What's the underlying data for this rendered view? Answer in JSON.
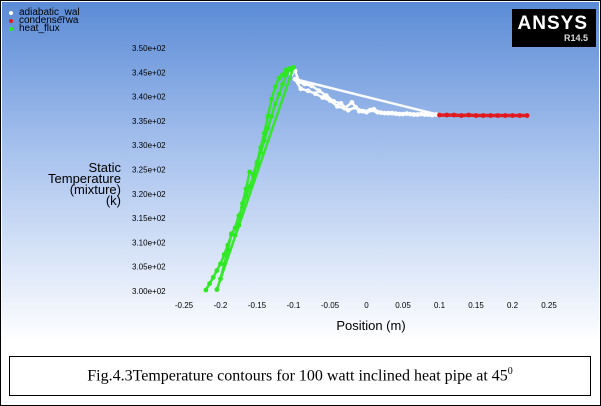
{
  "legend": [
    {
      "label": "adiabatic_wal",
      "color": "#ffffff"
    },
    {
      "label": "condenserwa",
      "color": "#e0191e"
    },
    {
      "label": "heat_flux",
      "color": "#2ee822"
    }
  ],
  "logo": {
    "main": "ANSYS",
    "sub": "R14.5"
  },
  "caption": {
    "text": "Fig.4.3Temperature contours for 100 watt inclined heat pipe at  45",
    "superscript": "0"
  },
  "colors": {
    "bg_top": "#5b8bd6",
    "bg_bottom": "#ffffff",
    "adiabatic": "#ffffff",
    "condenser": "#e0191e",
    "heat_flux": "#2ee822"
  },
  "chart_data": {
    "type": "scatter",
    "xlabel": "Position (m)",
    "ylabel_lines": [
      "Static",
      "Temperature",
      "(mixture)",
      "(k)"
    ],
    "xlim": [
      -0.25,
      0.25
    ],
    "ylim": [
      300,
      350
    ],
    "xticks": [
      "-0.25",
      "-0.2",
      "-0.15",
      "-0.1",
      "-0.05",
      "0",
      "0.05",
      "0.1",
      "0.15",
      "0.2",
      "0.25"
    ],
    "xtick_values": [
      -0.25,
      -0.2,
      -0.15,
      -0.1,
      -0.05,
      0,
      0.05,
      0.1,
      0.15,
      0.2,
      0.25
    ],
    "yticks": [
      "3.00e+02",
      "3.05e+02",
      "3.10e+02",
      "3.15e+02",
      "3.20e+02",
      "3.25e+02",
      "3.30e+02",
      "3.35e+02",
      "3.40e+02",
      "3.45e+02",
      "3.50e+02"
    ],
    "ytick_values": [
      300,
      305,
      310,
      315,
      320,
      325,
      330,
      335,
      340,
      345,
      350
    ],
    "grid": false,
    "legend_position": "top-left",
    "series": [
      {
        "name": "adiabatic_wal",
        "color": "#ffffff",
        "x": [
          -0.103,
          -0.098,
          -0.092,
          -0.085,
          -0.075,
          -0.065,
          -0.055,
          -0.045,
          -0.035,
          -0.025,
          -0.015,
          -0.005,
          0.005,
          0.015,
          0.025,
          0.035,
          0.045,
          0.055,
          0.065,
          0.075,
          0.085,
          0.095,
          0.1,
          -0.098,
          -0.09,
          -0.08,
          -0.07,
          -0.06,
          -0.05,
          -0.04,
          -0.03,
          -0.02,
          -0.01,
          0.0,
          0.01,
          0.02,
          0.03,
          0.04,
          0.05,
          0.06,
          0.07,
          0.08,
          0.09
        ],
        "y": [
          344.6,
          345.3,
          343.0,
          342.6,
          342.2,
          341.2,
          340.2,
          339.0,
          338.6,
          337.2,
          337.8,
          337.0,
          337.2,
          336.8,
          336.6,
          336.6,
          336.4,
          336.5,
          336.3,
          336.4,
          336.3,
          336.3,
          336.2,
          343.6,
          341.6,
          341.2,
          340.6,
          339.8,
          339.2,
          338.0,
          337.6,
          338.8,
          337.0,
          336.8,
          337.4,
          336.7,
          336.6,
          336.5,
          336.4,
          336.4,
          336.3,
          336.3,
          336.2
        ]
      },
      {
        "name": "condenserwa",
        "color": "#e0191e",
        "x": [
          0.1,
          0.11,
          0.12,
          0.13,
          0.14,
          0.15,
          0.16,
          0.17,
          0.18,
          0.19,
          0.2,
          0.21,
          0.22
        ],
        "y": [
          336.2,
          336.2,
          336.2,
          336.1,
          336.2,
          336.1,
          336.1,
          336.1,
          336.1,
          336.1,
          336.1,
          336.1,
          336.1
        ]
      },
      {
        "name": "heat_flux",
        "color": "#2ee822",
        "x": [
          -0.22,
          -0.215,
          -0.21,
          -0.205,
          -0.2,
          -0.195,
          -0.19,
          -0.185,
          -0.18,
          -0.175,
          -0.17,
          -0.165,
          -0.16,
          -0.155,
          -0.15,
          -0.145,
          -0.14,
          -0.135,
          -0.13,
          -0.125,
          -0.12,
          -0.115,
          -0.11,
          -0.105,
          -0.1,
          -0.205,
          -0.2,
          -0.195,
          -0.19,
          -0.185,
          -0.18,
          -0.175,
          -0.17,
          -0.165,
          -0.16,
          -0.155,
          -0.15,
          -0.145,
          -0.14,
          -0.135,
          -0.13,
          -0.125,
          -0.12,
          -0.115,
          -0.11,
          -0.105
        ],
        "y": [
          300.2,
          301.5,
          302.8,
          304.2,
          305.6,
          307.5,
          309.4,
          311.6,
          313.0,
          315.5,
          317.2,
          319.5,
          321.5,
          323.6,
          326.0,
          328.5,
          331.0,
          333.5,
          336.0,
          338.5,
          340.5,
          342.5,
          344.5,
          345.8,
          346.0,
          300.3,
          302.5,
          305.5,
          308.5,
          311.8,
          311.5,
          313.5,
          318.0,
          321.0,
          324.5,
          324.0,
          326.5,
          329.5,
          332.5,
          336.0,
          339.5,
          342.0,
          343.8,
          344.5,
          345.5,
          345.6
        ]
      }
    ]
  }
}
